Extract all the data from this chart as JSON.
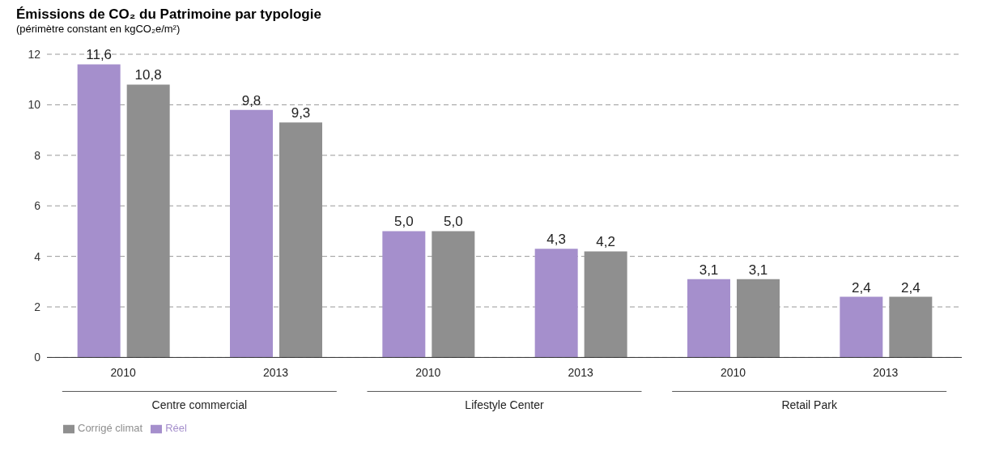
{
  "chart_data": {
    "type": "bar",
    "title": "Émissions de CO₂ du Patrimoine par typologie",
    "subtitle": "(périmètre constant en kgCO₂e/m²)",
    "categories": [
      "2010",
      "2013",
      "2010",
      "2013",
      "2010",
      "2013"
    ],
    "annotations": [
      "Centre commercial",
      "Lifestyle Center",
      "Retail Park"
    ],
    "series": [
      {
        "name": "Réel",
        "color": "#a58fcc",
        "values": [
          11.6,
          9.8,
          5.0,
          4.3,
          3.1,
          2.4
        ],
        "value_labels": [
          "11,6",
          "9,8",
          "5,0",
          "4,3",
          "3,1",
          "2,4"
        ]
      },
      {
        "name": "Corrigé climat",
        "color": "#8f8f8f",
        "values": [
          10.8,
          9.3,
          5.0,
          4.2,
          3.1,
          2.4
        ],
        "value_labels": [
          "10,8",
          "9,3",
          "5,0",
          "4,2",
          "3,1",
          "2,4"
        ]
      }
    ],
    "ylim": [
      0,
      12
    ],
    "yticks": [
      0,
      2,
      4,
      6,
      8,
      10,
      12
    ],
    "grid": "y",
    "legend": "bottom left"
  }
}
